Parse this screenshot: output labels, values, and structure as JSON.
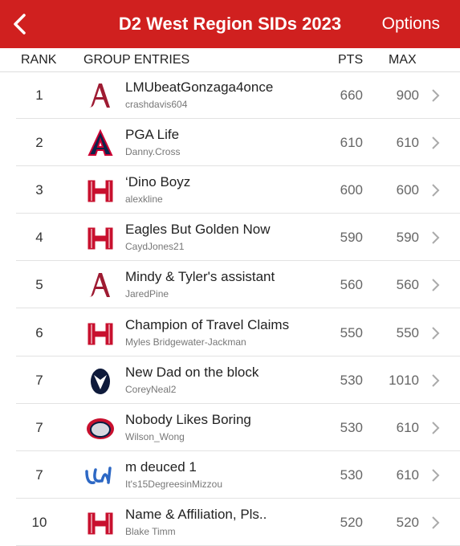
{
  "header": {
    "title": "D2 West Region SIDs 2023",
    "options": "Options"
  },
  "columns": {
    "rank": "RANK",
    "entries": "GROUP ENTRIES",
    "pts": "PTS",
    "max": "MAX"
  },
  "rows": [
    {
      "rank": "1",
      "name": "LMUbeatGonzaga4once",
      "user": "crashdavis604",
      "pts": "660",
      "max": "900"
    },
    {
      "rank": "2",
      "name": "PGA Life",
      "user": "Danny.Cross",
      "pts": "610",
      "max": "610"
    },
    {
      "rank": "3",
      "name": "‘Dino Boyz",
      "user": "alexkline",
      "pts": "600",
      "max": "600"
    },
    {
      "rank": "4",
      "name": "Eagles But Golden Now",
      "user": "CaydJones21",
      "pts": "590",
      "max": "590"
    },
    {
      "rank": "5",
      "name": "Mindy & Tyler's assistant",
      "user": "JaredPine",
      "pts": "560",
      "max": "560"
    },
    {
      "rank": "6",
      "name": "Champion of Travel Claims",
      "user": "Myles Bridgewater-Jackman",
      "pts": "550",
      "max": "550"
    },
    {
      "rank": "7",
      "name": "New Dad on the block",
      "user": "CoreyNeal2",
      "pts": "530",
      "max": "1010"
    },
    {
      "rank": "7",
      "name": "Nobody Likes Boring",
      "user": "Wilson_Wong",
      "pts": "530",
      "max": "610"
    },
    {
      "rank": "7",
      "name": "m deuced 1",
      "user": "It's15DegreesinMizzou",
      "pts": "530",
      "max": "610"
    },
    {
      "rank": "10",
      "name": "Name & Affiliation, Pls..",
      "user": "Blake Timm",
      "pts": "520",
      "max": "520"
    }
  ]
}
